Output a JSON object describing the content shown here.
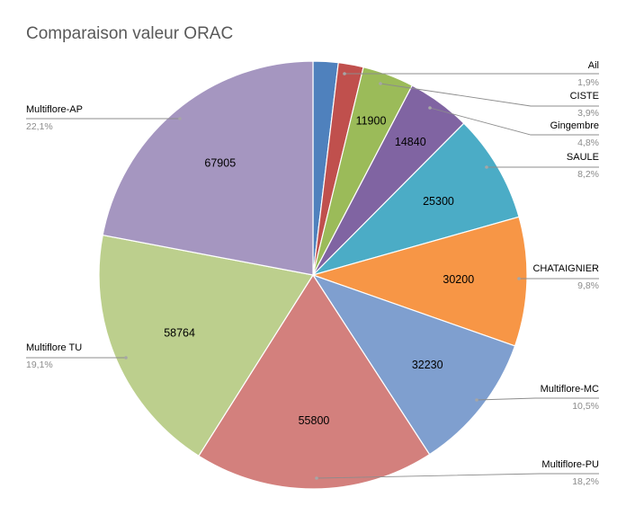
{
  "chart_data": {
    "type": "pie",
    "title": "Comparaison valeur ORAC",
    "slices": [
      {
        "name": "Ail",
        "value": 5708,
        "value_label": "",
        "percent_label": "1,9%",
        "color": "#4f81bd"
      },
      {
        "name": "CISTE",
        "value": 11900,
        "value_label": "11900",
        "percent_label": "3,9%",
        "color": "#c0504d"
      },
      {
        "name": "Gingembre",
        "value": 14840,
        "value_label": "14840",
        "percent_label": "4,8%",
        "color": "#9bbb59"
      },
      {
        "name": "SAULE",
        "value": 25300,
        "value_label": "25300",
        "percent_label": "8,2%",
        "color": "#8064a2"
      },
      {
        "name": "CHATAIGNIER",
        "value": 30200,
        "value_label": "30200",
        "percent_label": "9,8%",
        "color": "#4bacc6"
      },
      {
        "name": "Multiflore-MC",
        "value": 32230,
        "value_label": "32230",
        "percent_label": "10,5%",
        "color": "#f79646"
      },
      {
        "name": "Multiflore-PU",
        "value": 55800,
        "value_label": "55800",
        "percent_label": "18,2%",
        "color": "#7f9fcf"
      },
      {
        "name": "Multiflore TU",
        "value": 58764,
        "value_label": "58764",
        "percent_label": "19,1%",
        "color": "#d3807d"
      },
      {
        "name": "Multiflore-AP",
        "value": 67905,
        "value_label": "67905",
        "percent_label": "22,1%",
        "color": "#bccf8d"
      }
    ],
    "slice_colors_in_order": [
      "#4f81bd",
      "#c0504d",
      "#9bbb59",
      "#8064a2",
      "#4bacc6",
      "#f79646",
      "#7f9fcf",
      "#d3807d",
      "#bccf8d",
      "#a596c0"
    ],
    "legend": "none",
    "labels": "outside with leader lines"
  }
}
